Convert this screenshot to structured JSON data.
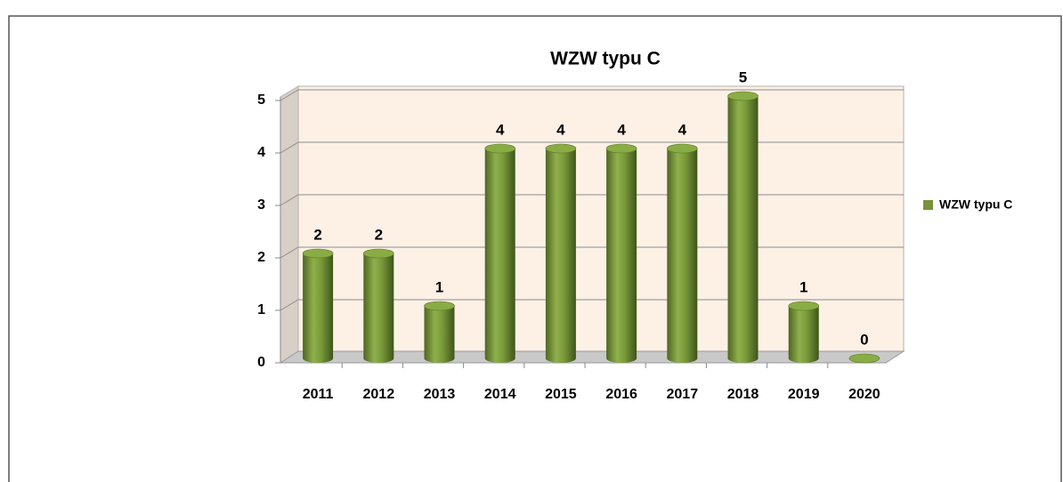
{
  "chart_data": {
    "type": "bar",
    "title": "WZW typu C",
    "categories": [
      "2011",
      "2012",
      "2013",
      "2014",
      "2015",
      "2016",
      "2017",
      "2018",
      "2019",
      "2020"
    ],
    "series": [
      {
        "name": "WZW typu C",
        "color": "#77933c",
        "values": [
          2,
          2,
          1,
          4,
          4,
          4,
          4,
          5,
          1,
          0
        ]
      }
    ],
    "ylim": [
      0,
      5
    ],
    "yticks": [
      0,
      1,
      2,
      3,
      4,
      5
    ],
    "grid": true,
    "legend": "right"
  }
}
